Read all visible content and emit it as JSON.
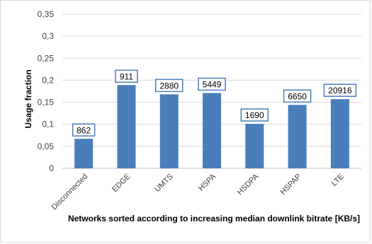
{
  "chart_data": {
    "type": "bar",
    "categories": [
      "Disconnected",
      "EDGE",
      "UMTS",
      "HSPA",
      "HSDPA",
      "HSPAP",
      "LTE"
    ],
    "values": [
      0.067,
      0.189,
      0.168,
      0.171,
      0.101,
      0.144,
      0.157
    ],
    "data_labels": [
      "862",
      "911",
      "2880",
      "5449",
      "1690",
      "6650",
      "20916"
    ],
    "ylabel": "Usage fraction",
    "xlabel": "Networks sorted according to increasing median downlink bitrate [KB/s]",
    "ylim": [
      0,
      0.35
    ],
    "yticks": [
      0,
      0.05,
      0.1,
      0.15,
      0.2,
      0.25,
      0.3,
      0.35
    ],
    "ytick_labels": [
      "0",
      "0,05",
      "0,1",
      "0,15",
      "0,2",
      "0,25",
      "0,3",
      "0,35"
    ],
    "grid": true,
    "legend": "none",
    "colors": {
      "bar": "#4a7ebb",
      "label_border": "#4a7ebb",
      "grid": "#d9d9d9"
    }
  }
}
